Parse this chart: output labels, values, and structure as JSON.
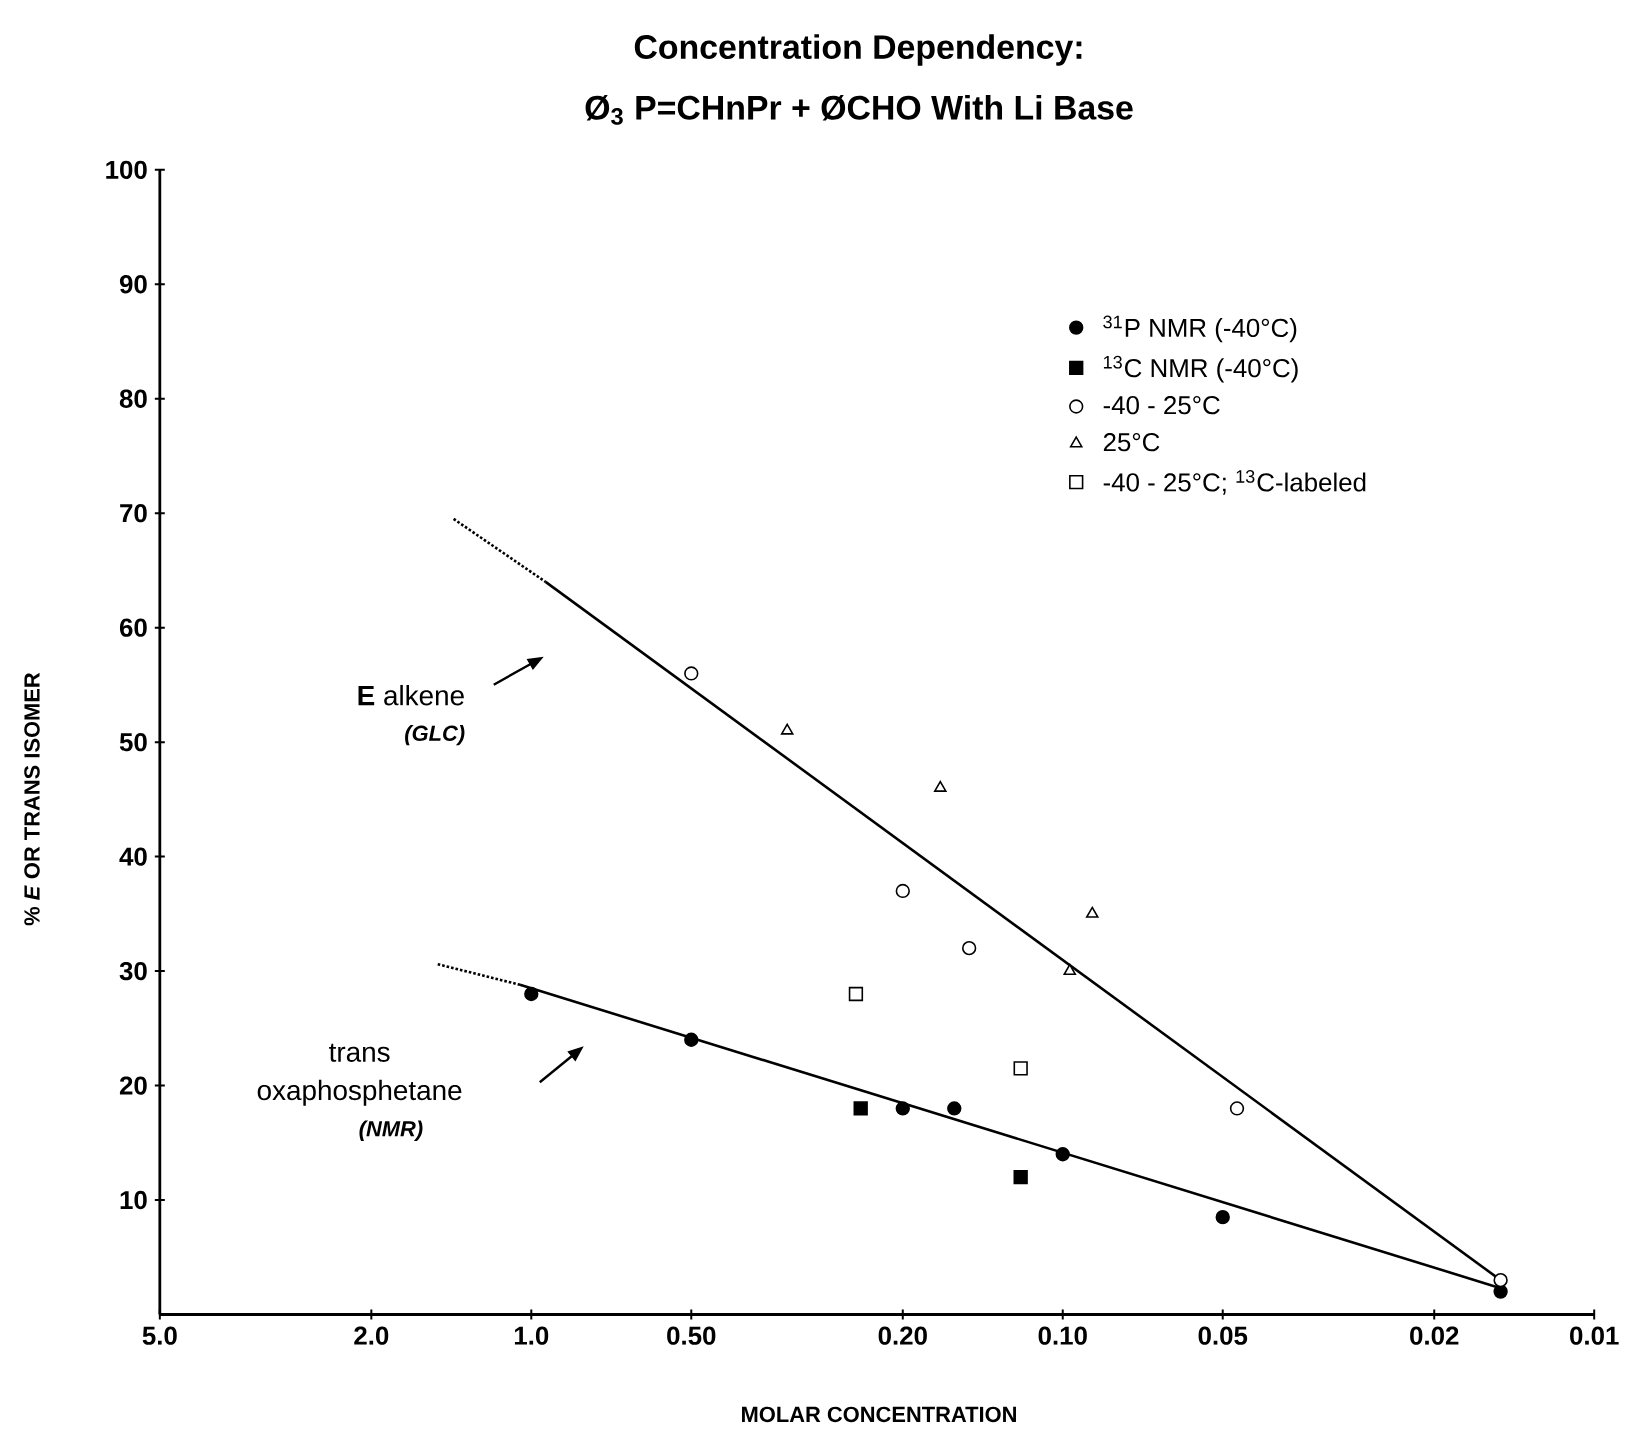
{
  "chart_data": {
    "type": "scatter",
    "title": "Concentration Dependency:",
    "subtitle": "Ø$_{3}$ P=CHnPr + ØCHO With Li Base",
    "xlabel": "MOLAR CONCENTRATION",
    "ylabel": "% *E* OR TRANS ISOMER",
    "annotations": [
      "**E** alkene",
      "(GLC)",
      "trans",
      "oxaphosphetane",
      "(NMR)"
    ],
    "log": "x",
    "xlim": [
      5,
      0.01
    ],
    "ylim": [
      0,
      100
    ],
    "xticks": [
      {
        "value": 5,
        "label": "5.0"
      },
      {
        "value": 2,
        "label": "2.0"
      },
      {
        "value": 1,
        "label": "1.0"
      },
      {
        "value": 0.5,
        "label": "0.50"
      },
      {
        "value": 0.2,
        "label": "0.20"
      },
      {
        "value": 0.1,
        "label": "0.10"
      },
      0.05,
      0.02,
      0.01
    ],
    "yticks": [
      10,
      20,
      30,
      40,
      50,
      60,
      70,
      80,
      90,
      100
    ],
    "legend": "top right",
    "series": [
      {
        "name": "$^{31}$P NMR (-40°C)",
        "marker": "circle",
        "color": "#000000",
        "x": [
          1.0,
          0.5,
          0.2,
          0.16,
          0.1,
          0.05,
          0.015
        ],
        "values": [
          28,
          24,
          18,
          18,
          14,
          8.5,
          2
        ]
      },
      {
        "name": "$^{13}$C NMR (-40°C)",
        "marker": "square",
        "color": "#000000",
        "x": [
          0.24,
          0.12
        ],
        "values": [
          18,
          12
        ]
      },
      {
        "name": "-40 - 25°C",
        "marker": "circle",
        "color": "#ffffff",
        "x": [
          0.5,
          0.2,
          0.15,
          0.047,
          0.015
        ],
        "values": [
          56,
          37,
          32,
          18,
          3
        ]
      },
      {
        "name": "25°C",
        "marker": "triangle",
        "color": "#ffffff",
        "x": [
          0.33,
          0.17,
          0.097,
          0.088
        ],
        "values": [
          51,
          46,
          30,
          35
        ]
      },
      {
        "name": "-40 - 25°C; $^{13}$C-labeled",
        "marker": "square",
        "color": "#ffffff",
        "x": [
          0.245,
          0.12
        ],
        "values": [
          28,
          21.5
        ]
      },
      {
        "type": "line",
        "marker": "none",
        "line_style": "solid",
        "color": "#000000",
        "x": [
          0.94,
          0.015
        ],
        "values": [
          64,
          3
        ]
      },
      {
        "type": "line",
        "marker": "none",
        "line_style": "dotted",
        "color": "#000000",
        "x": [
          1.4,
          0.94
        ],
        "values": [
          69.5,
          64
        ]
      },
      {
        "type": "line",
        "marker": "none",
        "line_style": "solid",
        "color": "#000000",
        "x": [
          1.05,
          0.015
        ],
        "values": [
          28.8,
          2.3
        ]
      },
      {
        "type": "line",
        "marker": "none",
        "line_style": "dotted",
        "color": "#000000",
        "x": [
          1.5,
          1.05
        ],
        "values": [
          30.6,
          28.8
        ]
      }
    ]
  }
}
